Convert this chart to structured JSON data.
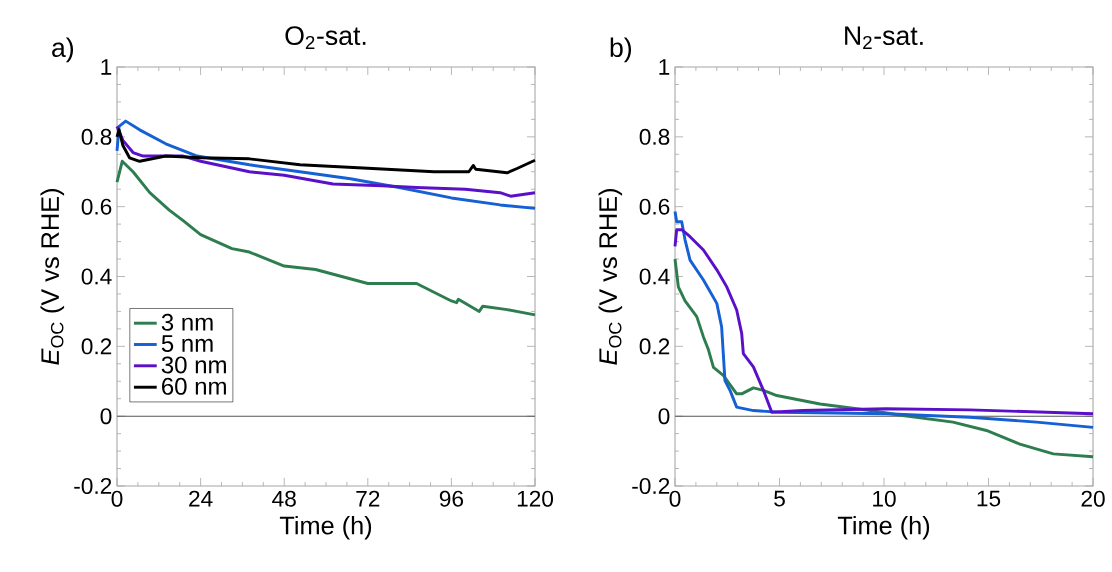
{
  "chart_data": [
    {
      "type": "line",
      "title": "O$_{2}$-sat.",
      "xlabel": "Time (h)",
      "ylabel": "*E*$_{OC}$ (V vs RHE)",
      "annotations": [
        "a)"
      ],
      "xlim": [
        0,
        120
      ],
      "ylim": [
        -0.2,
        1
      ],
      "xticks": [
        0,
        24,
        48,
        72,
        96,
        120
      ],
      "yticks": [
        -0.2,
        0,
        0.2,
        0.4,
        0.6,
        0.8,
        1
      ],
      "grid": false,
      "legend": "bottom left",
      "line_style": "solid",
      "ref_lines": [
        {
          "axis": "y",
          "value": 0,
          "color": "#555555"
        }
      ],
      "series": [
        {
          "name": "3 nm",
          "color": "#2e7d4f",
          "x": [
            0,
            1.5,
            4.6,
            9.4,
            15,
            19,
            24,
            33,
            38,
            48,
            57,
            72,
            86,
            96,
            97.5,
            98,
            104,
            105,
            112,
            120
          ],
          "values": [
            0.67,
            0.73,
            0.7,
            0.64,
            0.59,
            0.56,
            0.52,
            0.48,
            0.47,
            0.43,
            0.42,
            0.38,
            0.38,
            0.33,
            0.325,
            0.335,
            0.3,
            0.315,
            0.305,
            0.29
          ]
        },
        {
          "name": "5 nm",
          "color": "#1560d4",
          "x": [
            0,
            0.6,
            2.5,
            6.5,
            14,
            23,
            38,
            52.5,
            67,
            81,
            96,
            110,
            120
          ],
          "values": [
            0.76,
            0.83,
            0.845,
            0.82,
            0.78,
            0.745,
            0.72,
            0.7,
            0.68,
            0.655,
            0.625,
            0.605,
            0.595
          ]
        },
        {
          "name": "30 nm",
          "color": "#5a10c8",
          "x": [
            0,
            1.7,
            4.6,
            7.5,
            19,
            24,
            38,
            48,
            62,
            76,
            86,
            100,
            110,
            113,
            120
          ],
          "values": [
            0.83,
            0.79,
            0.755,
            0.745,
            0.745,
            0.73,
            0.7,
            0.69,
            0.665,
            0.66,
            0.655,
            0.65,
            0.64,
            0.63,
            0.64
          ]
        },
        {
          "name": "60 nm",
          "color": "#000000",
          "x": [
            0,
            0.6,
            1.7,
            3.6,
            6.5,
            14,
            24,
            38,
            52.5,
            72,
            91,
            101,
            102.3,
            103,
            112,
            115,
            120
          ],
          "values": [
            0.8,
            0.82,
            0.775,
            0.74,
            0.73,
            0.745,
            0.74,
            0.737,
            0.72,
            0.71,
            0.7,
            0.7,
            0.718,
            0.707,
            0.697,
            0.71,
            0.733
          ]
        }
      ]
    },
    {
      "type": "line",
      "title": "N$_{2}$-sat.",
      "xlabel": "Time (h)",
      "ylabel": "*E*$_{OC}$ (V vs RHE)",
      "annotations": [
        "b)"
      ],
      "xlim": [
        0,
        20
      ],
      "ylim": [
        -0.2,
        1
      ],
      "xticks": [
        0,
        5,
        10,
        15,
        20
      ],
      "yticks": [
        -0.2,
        0,
        0.2,
        0.4,
        0.6,
        0.8,
        1
      ],
      "grid": false,
      "line_style": "solid",
      "ref_lines": [
        {
          "axis": "y",
          "value": 0,
          "color": "#555555"
        }
      ],
      "series": [
        {
          "color": "#2e7d4f",
          "x": [
            0,
            0.16,
            0.48,
            1.04,
            1.36,
            1.6,
            1.84,
            2.31,
            2.95,
            3.19,
            3.75,
            4.23,
            4.87,
            6.94,
            9.34,
            10.9,
            13.3,
            14.9,
            16.5,
            18.1,
            20
          ],
          "values": [
            0.45,
            0.37,
            0.33,
            0.285,
            0.227,
            0.19,
            0.14,
            0.117,
            0.064,
            0.064,
            0.081,
            0.074,
            0.059,
            0.035,
            0.016,
            0.002,
            -0.017,
            -0.041,
            -0.08,
            -0.108,
            -0.116
          ]
        },
        {
          "color": "#1560d4",
          "x": [
            0,
            0.08,
            0.32,
            0.48,
            0.72,
            1.36,
            2.0,
            2.23,
            2.39,
            2.63,
            2.95,
            3.75,
            5.03,
            10.1,
            14.1,
            17.3,
            20
          ],
          "values": [
            0.586,
            0.557,
            0.557,
            0.505,
            0.447,
            0.39,
            0.323,
            0.256,
            0.102,
            0.074,
            0.026,
            0.016,
            0.011,
            0.007,
            -0.003,
            -0.017,
            -0.032
          ]
        },
        {
          "color": "#5a10c8",
          "x": [
            0,
            0.08,
            0.32,
            0.72,
            1.36,
            2.0,
            2.47,
            2.95,
            3.19,
            3.27,
            3.75,
            4.23,
            4.63,
            6.1,
            10.1,
            14.1,
            20
          ],
          "values": [
            0.486,
            0.534,
            0.534,
            0.514,
            0.476,
            0.419,
            0.371,
            0.304,
            0.237,
            0.179,
            0.141,
            0.074,
            0.011,
            0.016,
            0.021,
            0.018,
            0.007
          ]
        }
      ]
    }
  ]
}
